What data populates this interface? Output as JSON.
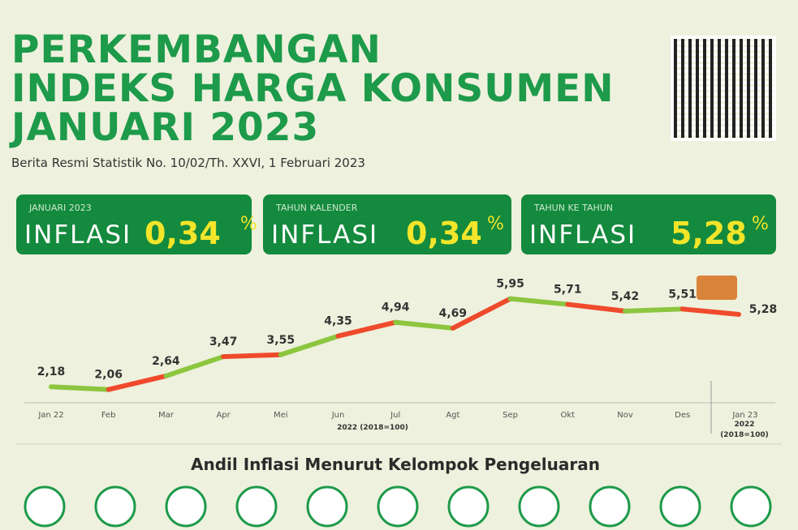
{
  "header": {
    "title_lines": [
      "PERKEMBANGAN",
      "INDEKS HARGA KONSUMEN",
      "JANUARI 2023"
    ],
    "subtitle": "Berita Resmi Statistik No. 10/02/Th. XXVI, 1 Februari 2023"
  },
  "cards": [
    {
      "label": "JANUARI 2023",
      "text": "INFLASI",
      "value": "0,34",
      "unit": "%"
    },
    {
      "label": "TAHUN KALENDER",
      "text": "INFLASI",
      "value": "0,34",
      "unit": "%"
    },
    {
      "label": "TAHUN KE TAHUN",
      "text": "INFLASI",
      "value": "5,28",
      "unit": "%"
    }
  ],
  "chart_data": {
    "type": "line",
    "categories": [
      "Jan 22",
      "Feb",
      "Mar",
      "Apr",
      "Mei",
      "Jun",
      "Jul",
      "Agt",
      "Sep",
      "Okt",
      "Nov",
      "Des",
      "Jan 23"
    ],
    "values": [
      2.18,
      2.06,
      2.64,
      3.47,
      3.55,
      4.35,
      4.94,
      4.69,
      5.95,
      5.71,
      5.42,
      5.51,
      5.28
    ],
    "value_labels": [
      "2,18",
      "2,06",
      "2,64",
      "3,47",
      "3,55",
      "4,35",
      "4,94",
      "4,69",
      "5,95",
      "5,71",
      "5,42",
      "5,51",
      "5,28"
    ],
    "segment_colors": [
      "#8cc63f",
      "#ef4a2c"
    ],
    "x_label": "2022 (2018=100)",
    "x_label_last": [
      "2022",
      "(2018=100)"
    ]
  },
  "section_title": "Andil Inflasi Menurut Kelompok Pengeluaran"
}
